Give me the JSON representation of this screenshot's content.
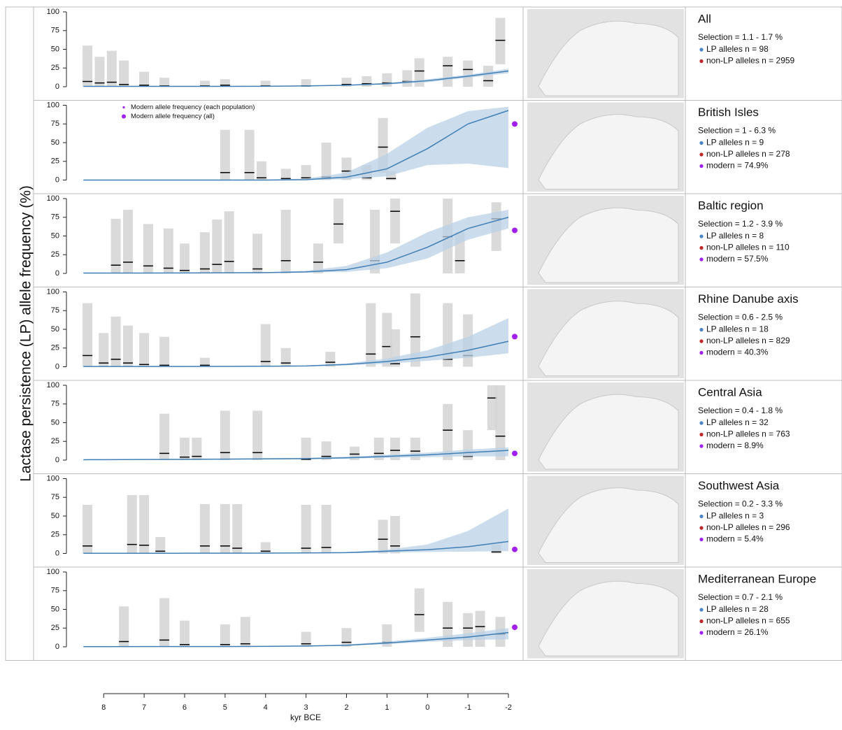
{
  "chart_data": {
    "type": "panels",
    "ylabel": "Lactase persistence (LP) allele frequency (%)",
    "xlabel": "kyr BCE",
    "xlim": [
      8.92,
      -2.19
    ],
    "xticks": [
      8,
      7,
      6,
      5,
      4,
      3,
      2,
      1,
      0,
      -1,
      -2
    ],
    "legend": [
      "Modern allele frequency (each population)",
      "Modern allele frequency (all)"
    ],
    "colors": {
      "fit": "#3f7fb5",
      "band": "#b9d0e6",
      "bin": "#d3d3d3",
      "lp": "#4a86c5",
      "nonlp": "#c0282a",
      "modern": "#a020f0"
    },
    "panels": [
      {
        "type": "line",
        "title": "All",
        "selection": "Selection = 1.1 - 1.7 %",
        "lp": "LP alleles n = 98",
        "nonlp": "non-LP alleles n = 2959",
        "ylim": [
          0,
          100
        ],
        "yticks": [
          0,
          25,
          50,
          75,
          100
        ],
        "x": [
          8.5,
          8,
          7,
          6,
          5,
          4,
          3,
          2,
          1,
          0,
          -1,
          -2
        ],
        "fit": [
          0.5,
          0.5,
          0.5,
          0.5,
          0.5,
          0.6,
          1,
          2,
          4,
          8,
          14,
          21
        ],
        "fit_lower": [
          0.3,
          0.3,
          0.3,
          0.3,
          0.3,
          0.4,
          0.7,
          1.5,
          3,
          6,
          12,
          18
        ],
        "fit_upper": [
          0.7,
          0.7,
          0.7,
          0.7,
          0.7,
          0.8,
          1.3,
          2.5,
          5,
          10,
          16,
          24
        ],
        "bin_x": [
          8.4,
          8.1,
          7.8,
          7.5,
          7,
          6.5,
          5.5,
          5,
          4,
          3,
          2,
          1.5,
          1,
          0.5,
          0.2,
          -0.5,
          -1,
          -1.5,
          -1.8
        ],
        "bin_median": [
          7,
          5,
          6,
          3,
          2,
          1,
          1,
          2,
          1,
          1,
          3,
          4,
          5,
          7,
          21,
          28,
          23,
          8,
          62
        ],
        "bin_low": [
          0,
          0,
          0,
          0,
          0,
          0,
          0,
          0,
          0,
          0,
          0,
          0,
          0,
          0,
          0,
          0,
          0,
          0,
          30
        ],
        "bin_high": [
          55,
          40,
          48,
          35,
          20,
          12,
          8,
          10,
          8,
          10,
          12,
          14,
          18,
          22,
          38,
          40,
          35,
          28,
          92
        ]
      },
      {
        "type": "line",
        "title": "British Isles",
        "selection": "Selection = 1 - 6.3 %",
        "lp": "LP alleles n = 9",
        "nonlp": "non-LP alleles n = 278",
        "modern": "modern = 74.9%",
        "modern_value": 74.9,
        "ylim": [
          0,
          100
        ],
        "yticks": [
          0,
          25,
          50,
          75,
          100
        ],
        "x": [
          8.5,
          8,
          7,
          6,
          5,
          4,
          3,
          2,
          1,
          0,
          -1,
          -2
        ],
        "fit": [
          0,
          0,
          0,
          0,
          0,
          0,
          0.5,
          4,
          15,
          42,
          75,
          93
        ],
        "fit_lower": [
          0,
          0,
          0,
          0,
          0,
          0,
          0,
          1,
          5,
          20,
          22,
          16
        ],
        "fit_upper": [
          0,
          0,
          0,
          0,
          0.2,
          0.5,
          2,
          10,
          35,
          70,
          92,
          98
        ],
        "bin_x": [
          5,
          4.4,
          4.1,
          3.5,
          3,
          2.5,
          2,
          1.5,
          1.1,
          0.9
        ],
        "bin_median": [
          10,
          10,
          3,
          2,
          3,
          4,
          12,
          3,
          44,
          2
        ],
        "bin_low": [
          0,
          0,
          0,
          0,
          0,
          0,
          0,
          0,
          10,
          0
        ],
        "bin_high": [
          67,
          67,
          25,
          15,
          20,
          50,
          30,
          20,
          83,
          12
        ]
      },
      {
        "type": "line",
        "title": "Baltic region",
        "selection": "Selection = 1.2 - 3.9 %",
        "lp": "LP alleles n = 8",
        "nonlp": "non-LP alleles n = 110",
        "modern": "modern = 57.5%",
        "modern_value": 57.5,
        "ylim": [
          0,
          100
        ],
        "yticks": [
          0,
          25,
          50,
          75,
          100
        ],
        "x": [
          8.5,
          8,
          7,
          6,
          5,
          4,
          3,
          2,
          1,
          0,
          -1,
          -2
        ],
        "fit": [
          0.5,
          0.5,
          0.5,
          0.6,
          0.8,
          1,
          2,
          5,
          15,
          35,
          60,
          75
        ],
        "fit_lower": [
          0.3,
          0.3,
          0.3,
          0.4,
          0.5,
          0.6,
          1,
          2,
          7,
          20,
          45,
          60
        ],
        "fit_upper": [
          0.8,
          0.8,
          0.8,
          0.9,
          1.2,
          1.6,
          3.5,
          10,
          28,
          55,
          75,
          85
        ],
        "bin_x": [
          7.7,
          7.4,
          6.9,
          6.4,
          6,
          5.5,
          5.2,
          4.9,
          4.2,
          3.5,
          2.7,
          2.2,
          1.3,
          0.8,
          -0.5,
          -0.8,
          -1.7
        ],
        "bin_median": [
          11,
          15,
          10,
          7,
          4,
          6,
          12,
          16,
          6,
          17,
          15,
          66,
          17,
          83,
          49,
          17,
          73
        ],
        "bin_low": [
          0,
          0,
          0,
          0,
          0,
          0,
          0,
          0,
          0,
          0,
          0,
          40,
          0,
          40,
          0,
          0,
          30
        ],
        "bin_high": [
          73,
          85,
          66,
          60,
          40,
          55,
          72,
          83,
          53,
          85,
          40,
          100,
          85,
          100,
          100,
          55,
          95
        ]
      },
      {
        "type": "line",
        "title": "Rhine Danube axis",
        "selection": "Selection = 0.6 - 2.5 %",
        "lp": "LP alleles n = 18",
        "nonlp": "non-LP alleles n = 829",
        "modern": "modern = 40.3%",
        "modern_value": 40.3,
        "ylim": [
          0,
          100
        ],
        "yticks": [
          0,
          25,
          50,
          75,
          100
        ],
        "x": [
          8.5,
          8,
          7,
          6,
          5,
          4,
          3,
          2,
          1,
          0,
          -1,
          -2
        ],
        "fit": [
          0.3,
          0.3,
          0.3,
          0.4,
          0.5,
          0.7,
          1,
          3,
          7,
          13,
          22,
          34
        ],
        "fit_lower": [
          0.2,
          0.2,
          0.2,
          0.2,
          0.3,
          0.4,
          0.6,
          2,
          4,
          8,
          12,
          18
        ],
        "fit_upper": [
          0.5,
          0.5,
          0.5,
          0.6,
          0.8,
          1,
          1.6,
          4.5,
          11,
          22,
          40,
          65
        ],
        "bin_x": [
          8.4,
          8,
          7.7,
          7.4,
          7,
          6.5,
          5.5,
          4,
          3.5,
          2.4,
          1.4,
          1,
          0.8,
          0.3,
          -0.5,
          -1
        ],
        "bin_median": [
          15,
          5,
          10,
          5,
          3,
          2,
          2,
          7,
          5,
          6,
          17,
          27,
          4,
          40,
          10,
          15
        ],
        "bin_low": [
          0,
          0,
          0,
          0,
          0,
          0,
          0,
          0,
          0,
          0,
          0,
          0,
          0,
          0,
          0,
          0
        ],
        "bin_high": [
          85,
          45,
          67,
          55,
          45,
          40,
          12,
          57,
          25,
          20,
          85,
          72,
          50,
          98,
          85,
          70
        ]
      },
      {
        "type": "line",
        "title": "Central Asia",
        "selection": "Selection = 0.4 - 1.8 %",
        "lp": "LP alleles n = 32",
        "nonlp": "non-LP alleles n = 763",
        "modern": "modern = 8.9%",
        "modern_value": 8.9,
        "ylim": [
          0,
          100
        ],
        "yticks": [
          0,
          25,
          50,
          75,
          100
        ],
        "x": [
          8.5,
          8,
          7,
          6,
          5,
          4,
          3,
          2,
          1,
          0,
          -1,
          -2
        ],
        "fit": [
          0.5,
          0.6,
          0.8,
          1,
          1.3,
          1.6,
          2,
          3,
          5,
          7,
          10,
          13
        ],
        "fit_lower": [
          0.3,
          0.4,
          0.5,
          0.6,
          0.8,
          1,
          1.3,
          2,
          3,
          4,
          5,
          5
        ],
        "fit_upper": [
          0.8,
          0.9,
          1.2,
          1.5,
          2,
          2.5,
          3,
          4.5,
          7,
          10,
          14,
          17
        ],
        "bin_x": [
          6.5,
          6,
          5.7,
          5,
          4.2,
          3,
          2.5,
          1.8,
          1.2,
          0.8,
          0.3,
          -0.5,
          -1,
          -1.6,
          -1.8
        ],
        "bin_median": [
          9,
          4,
          5,
          10,
          10,
          1,
          5,
          8,
          9,
          13,
          12,
          40,
          5,
          83,
          32
        ],
        "bin_low": [
          0,
          0,
          0,
          0,
          0,
          0,
          0,
          0,
          0,
          0,
          0,
          0,
          0,
          40,
          0
        ],
        "bin_high": [
          62,
          30,
          30,
          66,
          66,
          30,
          25,
          18,
          30,
          30,
          30,
          75,
          40,
          100,
          100
        ]
      },
      {
        "type": "line",
        "title": "Southwest Asia",
        "selection": "Selection = 0.2 - 3.3 %",
        "lp": "LP alleles n = 3",
        "nonlp": "non-LP alleles n = 296",
        "modern": "modern = 5.4%",
        "modern_value": 5.4,
        "ylim": [
          0,
          100
        ],
        "yticks": [
          0,
          25,
          50,
          75,
          100
        ],
        "x": [
          8.5,
          8,
          7,
          6,
          5,
          4,
          3,
          2,
          1,
          0,
          -1,
          -2
        ],
        "fit": [
          0.2,
          0.2,
          0.2,
          0.3,
          0.4,
          0.5,
          0.7,
          1,
          3,
          5,
          9,
          16
        ],
        "fit_lower": [
          0.1,
          0.1,
          0.1,
          0.1,
          0.2,
          0.2,
          0.3,
          0.5,
          1,
          2,
          2.5,
          3
        ],
        "fit_upper": [
          0.4,
          0.4,
          0.4,
          0.5,
          0.7,
          0.9,
          1.2,
          2,
          5,
          12,
          30,
          60
        ],
        "bin_x": [
          8.4,
          7.3,
          7,
          6.6,
          5.5,
          5,
          4.7,
          4,
          3,
          2.5,
          1.1,
          0.8,
          -1.7
        ],
        "bin_median": [
          10,
          12,
          11,
          3,
          10,
          10,
          7,
          3,
          7,
          8,
          19,
          10,
          2
        ],
        "bin_low": [
          0,
          0,
          0,
          0,
          0,
          0,
          0,
          0,
          0,
          0,
          0,
          0,
          0
        ],
        "bin_high": [
          65,
          78,
          78,
          22,
          66,
          66,
          66,
          15,
          65,
          65,
          45,
          50,
          12
        ]
      },
      {
        "type": "line",
        "title": "Mediterranean Europe",
        "selection": "Selection = 0.7 - 2.1 %",
        "lp": "LP alleles n = 28",
        "nonlp": "non-LP alleles n = 655",
        "modern": "modern = 26.1%",
        "modern_value": 26.1,
        "ylim": [
          0,
          100
        ],
        "yticks": [
          0,
          25,
          50,
          75,
          100
        ],
        "x": [
          8.5,
          8,
          7,
          6,
          5,
          4,
          3,
          2,
          1,
          0,
          -1,
          -2
        ],
        "fit": [
          0.2,
          0.2,
          0.3,
          0.3,
          0.4,
          0.6,
          1,
          2,
          5,
          9,
          13,
          19
        ],
        "fit_lower": [
          0.1,
          0.1,
          0.2,
          0.2,
          0.2,
          0.3,
          0.6,
          1.5,
          3.5,
          6.5,
          9,
          10
        ],
        "fit_upper": [
          0.4,
          0.4,
          0.5,
          0.5,
          0.6,
          0.9,
          1.5,
          3,
          7,
          12,
          18,
          25
        ],
        "bin_x": [
          7.5,
          6.5,
          6,
          5,
          4.5,
          3,
          2,
          1,
          0.2,
          -0.5,
          -1,
          -1.3,
          -1.8
        ],
        "bin_median": [
          7,
          9,
          3,
          3,
          4,
          4,
          6,
          6,
          43,
          25,
          25,
          27,
          17
        ],
        "bin_low": [
          0,
          0,
          0,
          0,
          0,
          0,
          0,
          0,
          20,
          0,
          0,
          0,
          0
        ],
        "bin_high": [
          54,
          65,
          35,
          30,
          40,
          20,
          25,
          30,
          78,
          60,
          45,
          48,
          40
        ]
      }
    ]
  }
}
